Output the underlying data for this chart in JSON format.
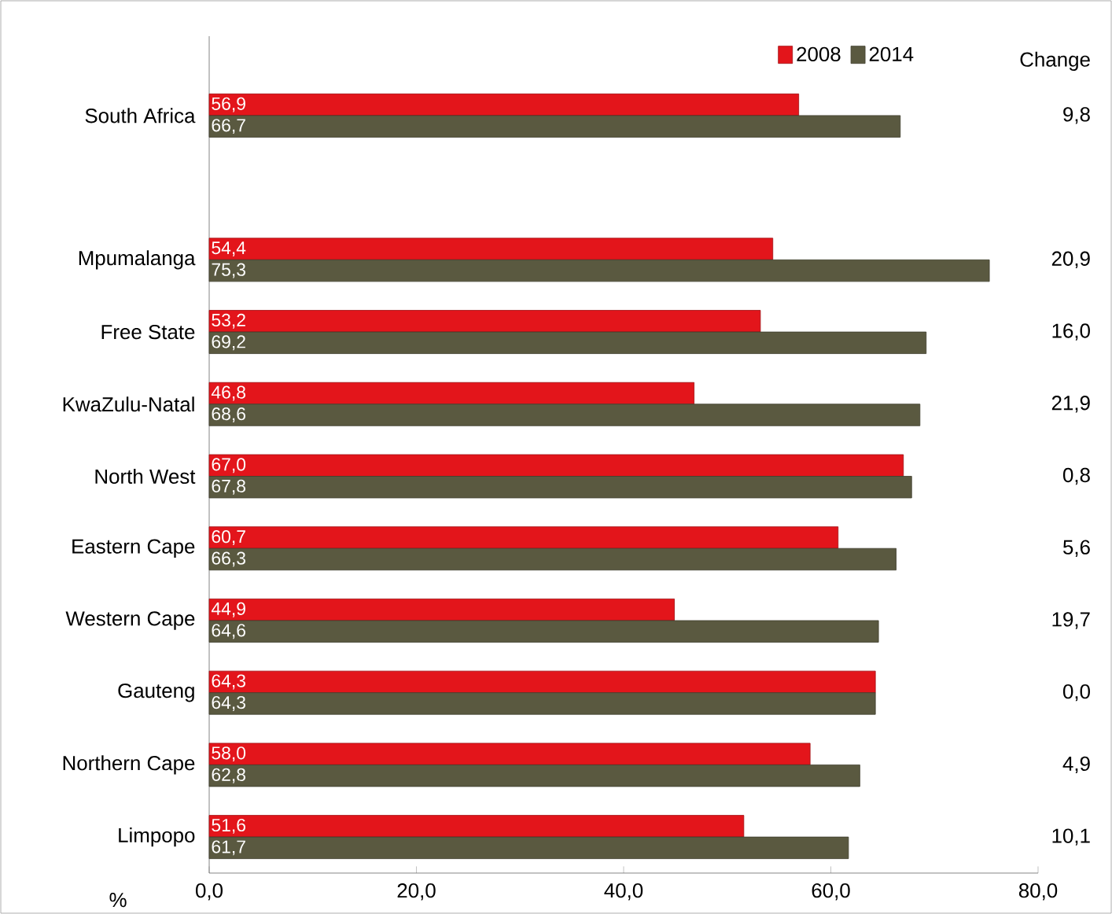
{
  "chart_data": {
    "type": "bar",
    "orientation": "horizontal",
    "xlabel": "%",
    "categories": [
      "South Africa",
      null,
      "Mpumalanga",
      "Free State",
      "KwaZulu-Natal",
      "North West",
      "Eastern Cape",
      "Western Cape",
      "Gauteng",
      "Northern Cape",
      "Limpopo"
    ],
    "series": [
      {
        "name": "2008",
        "color": "#e3151b",
        "values": [
          56.9,
          null,
          54.4,
          53.2,
          46.8,
          67.0,
          60.7,
          44.9,
          64.3,
          58.0,
          51.6
        ],
        "value_labels": [
          "56,9",
          null,
          "54,4",
          "53,2",
          "46,8",
          "67,0",
          "60,7",
          "44,9",
          "64,3",
          "58,0",
          "51,6"
        ]
      },
      {
        "name": "2014",
        "color": "#5a5940",
        "values": [
          66.7,
          null,
          75.3,
          69.2,
          68.6,
          67.8,
          66.3,
          64.6,
          64.3,
          62.8,
          61.7
        ],
        "value_labels": [
          "66,7",
          null,
          "75,3",
          "69,2",
          "68,6",
          "67,8",
          "66,3",
          "64,6",
          "64,3",
          "62,8",
          "61,7"
        ]
      }
    ],
    "xlim": [
      0,
      80
    ],
    "xticks": [
      {
        "value": 0,
        "label": "0,0"
      },
      {
        "value": 20,
        "label": "20,0"
      },
      {
        "value": 40,
        "label": "40,0"
      },
      {
        "value": 60,
        "label": "60,0"
      },
      {
        "value": 80,
        "label": "80,0"
      }
    ],
    "legend": "top right",
    "annotations": [
      "Change",
      "9,8",
      "20,9",
      "16,0",
      "21,9",
      "0,8",
      "5,6",
      "19,7",
      "0,0",
      "4,9",
      "10,1"
    ]
  }
}
